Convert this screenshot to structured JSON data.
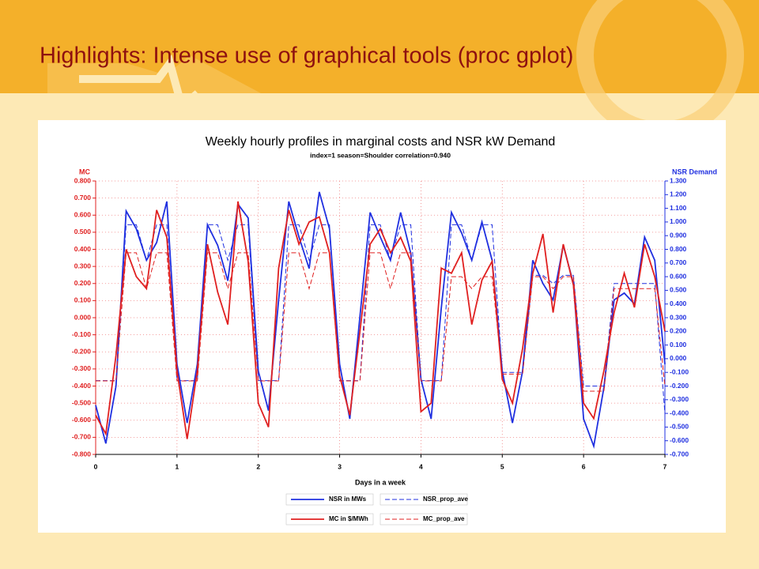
{
  "slide_title": "Highlights: Intense use of graphical tools (proc gplot)",
  "chart_data": {
    "type": "line",
    "title": "Weekly hourly profiles in marginal costs and NSR kW Demand",
    "subtitle": "index=1 season=Shoulder correlation=0.940",
    "x_label": "Days in a week",
    "y_label": "MC",
    "y2_label": "NSR Demand",
    "x": [
      0,
      0.125,
      0.25,
      0.375,
      0.5,
      0.625,
      0.75,
      0.875,
      1,
      1.125,
      1.25,
      1.375,
      1.5,
      1.625,
      1.75,
      1.875,
      2,
      2.125,
      2.25,
      2.375,
      2.5,
      2.625,
      2.75,
      2.875,
      3,
      3.125,
      3.25,
      3.375,
      3.5,
      3.625,
      3.75,
      3.875,
      4,
      4.125,
      4.25,
      4.375,
      4.5,
      4.625,
      4.75,
      4.875,
      5,
      5.125,
      5.25,
      5.375,
      5.5,
      5.625,
      5.75,
      5.875,
      6,
      6.125,
      6.25,
      6.375,
      6.5,
      6.625,
      6.75,
      6.875,
      7
    ],
    "xlim": [
      0,
      7
    ],
    "xticks": [
      0,
      1,
      2,
      3,
      4,
      5,
      6,
      7
    ],
    "ylim": [
      -0.8,
      0.8
    ],
    "yticks": [
      {
        "value": -0.8,
        "label": "-0.800"
      },
      {
        "value": -0.7,
        "label": "-0.700"
      },
      {
        "value": -0.6,
        "label": "-0.600"
      },
      {
        "value": -0.5,
        "label": "-0.500"
      },
      {
        "value": -0.4,
        "label": "-0.400"
      },
      {
        "value": -0.3,
        "label": "-0.300"
      },
      {
        "value": -0.2,
        "label": "-0.200"
      },
      {
        "value": -0.1,
        "label": "-0.100"
      },
      {
        "value": 0,
        "label": "0.000"
      },
      {
        "value": 0.1,
        "label": "0.100"
      },
      {
        "value": 0.2,
        "label": "0.200"
      },
      {
        "value": 0.3,
        "label": "0.300"
      },
      {
        "value": 0.4,
        "label": "0.400"
      },
      {
        "value": 0.5,
        "label": "0.500"
      },
      {
        "value": 0.6,
        "label": "0.600"
      },
      {
        "value": 0.7,
        "label": "0.700"
      },
      {
        "value": 0.8,
        "label": "0.800"
      }
    ],
    "y2lim": [
      -0.7,
      1.3
    ],
    "y2ticks": [
      {
        "value": -0.7,
        "label": "-0.700"
      },
      {
        "value": -0.6,
        "label": "-0.600"
      },
      {
        "value": -0.5,
        "label": "-0.500"
      },
      {
        "value": -0.4,
        "label": "-0.400"
      },
      {
        "value": -0.3,
        "label": "-0.300"
      },
      {
        "value": -0.2,
        "label": "-0.200"
      },
      {
        "value": -0.1,
        "label": "-0.100"
      },
      {
        "value": 0,
        "label": "0.000"
      },
      {
        "value": 0.1,
        "label": "0.100"
      },
      {
        "value": 0.2,
        "label": "0.200"
      },
      {
        "value": 0.3,
        "label": "0.300"
      },
      {
        "value": 0.4,
        "label": "0.400"
      },
      {
        "value": 0.5,
        "label": "0.500"
      },
      {
        "value": 0.6,
        "label": "0.600"
      },
      {
        "value": 0.7,
        "label": "0.700"
      },
      {
        "value": 0.8,
        "label": "0.800"
      },
      {
        "value": 0.9,
        "label": "0.900"
      },
      {
        "value": 1.0,
        "label": "1.000"
      },
      {
        "value": 1.1,
        "label": "1.100"
      },
      {
        "value": 1.2,
        "label": "1.200"
      },
      {
        "value": 1.3,
        "label": "1.300"
      }
    ],
    "grid": true,
    "y_color": "#e02020",
    "y2_color": "#2030e0",
    "series": [
      {
        "name": "NSR in MWs",
        "color": "#2030e0",
        "axis": "y2",
        "dashed": false,
        "values": [
          -0.34,
          -0.62,
          -0.2,
          1.08,
          0.95,
          0.72,
          0.85,
          1.15,
          -0.04,
          -0.47,
          -0.04,
          0.98,
          0.83,
          0.57,
          1.13,
          1.03,
          -0.09,
          -0.38,
          0.43,
          1.15,
          0.89,
          0.66,
          1.22,
          0.95,
          -0.04,
          -0.44,
          0.31,
          1.07,
          0.89,
          0.72,
          1.07,
          0.77,
          -0.15,
          -0.44,
          0.37,
          1.07,
          0.92,
          0.72,
          1.0,
          0.72,
          -0.09,
          -0.47,
          -0.09,
          0.72,
          0.55,
          0.43,
          0.83,
          0.55,
          -0.44,
          -0.64,
          -0.21,
          0.43,
          0.48,
          0.4,
          0.89,
          0.72,
          -0.04
        ]
      },
      {
        "name": "NSR_prop_ave",
        "color": "#2030e0",
        "axis": "y2",
        "dashed": true,
        "values": [
          -0.16,
          -0.16,
          -0.16,
          0.98,
          0.98,
          0.72,
          0.98,
          0.98,
          -0.16,
          -0.16,
          -0.16,
          0.98,
          0.98,
          0.72,
          0.98,
          0.98,
          -0.16,
          -0.16,
          -0.16,
          0.98,
          0.98,
          0.72,
          0.98,
          0.98,
          -0.16,
          -0.16,
          -0.16,
          0.98,
          0.98,
          0.72,
          0.98,
          0.98,
          -0.16,
          -0.16,
          -0.16,
          0.98,
          0.98,
          0.72,
          0.98,
          0.98,
          -0.1,
          -0.1,
          -0.1,
          0.61,
          0.61,
          0.55,
          0.61,
          0.61,
          -0.2,
          -0.2,
          -0.2,
          0.55,
          0.55,
          0.55,
          0.55,
          0.55,
          -0.4
        ]
      },
      {
        "name": "MC in $/MWh",
        "color": "#e02020",
        "axis": "y",
        "dashed": false,
        "values": [
          -0.57,
          -0.68,
          -0.22,
          0.4,
          0.24,
          0.17,
          0.63,
          0.47,
          -0.31,
          -0.71,
          -0.31,
          0.43,
          0.15,
          -0.04,
          0.68,
          0.33,
          -0.5,
          -0.64,
          0.29,
          0.63,
          0.43,
          0.56,
          0.59,
          0.38,
          -0.34,
          -0.57,
          -0.08,
          0.43,
          0.52,
          0.38,
          0.47,
          0.33,
          -0.55,
          -0.5,
          0.29,
          0.26,
          0.38,
          -0.04,
          0.22,
          0.33,
          -0.36,
          -0.5,
          -0.18,
          0.26,
          0.49,
          0.03,
          0.43,
          0.19,
          -0.5,
          -0.59,
          -0.31,
          0.03,
          0.26,
          0.06,
          0.43,
          0.24,
          -0.08
        ]
      },
      {
        "name": "MC_prop_ave",
        "color": "#e02020",
        "axis": "y",
        "dashed": true,
        "values": [
          -0.37,
          -0.37,
          -0.37,
          0.38,
          0.38,
          0.17,
          0.38,
          0.38,
          -0.37,
          -0.37,
          -0.37,
          0.38,
          0.38,
          0.17,
          0.38,
          0.38,
          -0.37,
          -0.37,
          -0.37,
          0.38,
          0.38,
          0.17,
          0.38,
          0.38,
          -0.37,
          -0.37,
          -0.37,
          0.38,
          0.38,
          0.17,
          0.38,
          0.38,
          -0.37,
          -0.37,
          -0.37,
          0.24,
          0.24,
          0.17,
          0.24,
          0.24,
          -0.33,
          -0.33,
          -0.33,
          0.24,
          0.24,
          0.17,
          0.24,
          0.24,
          -0.43,
          -0.43,
          -0.43,
          0.17,
          0.17,
          0.17,
          0.17,
          0.17,
          -0.4
        ]
      }
    ]
  }
}
